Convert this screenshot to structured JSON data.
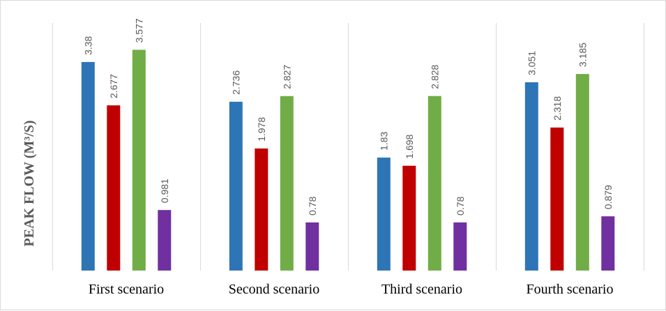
{
  "chart_data": {
    "type": "bar",
    "title": "",
    "xlabel": "",
    "ylabel": "PEAK FLOW (M³/S)",
    "categories": [
      "First scenario",
      "Second scenario",
      "Third scenario",
      "Fourth scenario"
    ],
    "series": [
      {
        "values": [
          3.38,
          2.736,
          1.83,
          3.051
        ],
        "color": "#2e75b6"
      },
      {
        "values": [
          2.677,
          1.978,
          1.698,
          2.318
        ],
        "color": "#c00000"
      },
      {
        "values": [
          3.577,
          2.827,
          2.828,
          3.185
        ],
        "color": "#70ad47"
      },
      {
        "values": [
          0.981,
          0.78,
          0.78,
          0.879
        ],
        "color": "#7030a0"
      }
    ],
    "data_labels": [
      [
        "3.38",
        "2.677",
        "3.577",
        "0.981"
      ],
      [
        "2.736",
        "1.978",
        "2.827",
        "0.78"
      ],
      [
        "1.83",
        "1.698",
        "2.828",
        "0.78"
      ],
      [
        "3.051",
        "2.318",
        "3.185",
        "0.879"
      ]
    ],
    "ylim": [
      0,
      4
    ],
    "grid": false,
    "legend": "none"
  }
}
